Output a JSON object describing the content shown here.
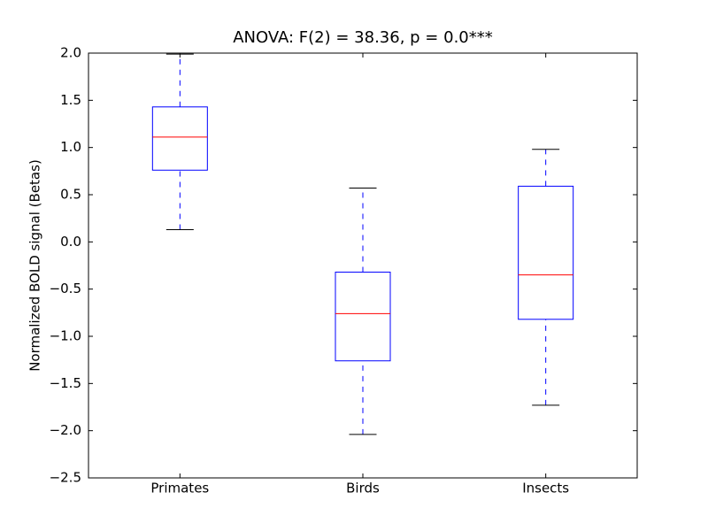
{
  "chart_data": {
    "type": "box",
    "title": "ANOVA: F(2) = 38.36, p = 0.0***",
    "y_label": "Normalized BOLD signal (Betas)",
    "categories": [
      "Primates",
      "Birds",
      "Insects"
    ],
    "boxes": [
      {
        "low": 0.13,
        "q1": 0.76,
        "median": 1.11,
        "q3": 1.43,
        "high": 1.99
      },
      {
        "low": -2.04,
        "q1": -1.26,
        "median": -0.76,
        "q3": -0.32,
        "high": 0.57
      },
      {
        "low": -1.73,
        "q1": -0.82,
        "median": -0.35,
        "q3": 0.59,
        "high": 0.98
      }
    ],
    "box_color": "#0000ff",
    "median_color": "#ff0000",
    "cap_color": "#000000",
    "ylim": [
      -2.5,
      2.0
    ],
    "yticks": [
      {
        "value": -2.5,
        "label": "−2.5"
      },
      {
        "value": -2.0,
        "label": "−2.0"
      },
      {
        "value": -1.5,
        "label": "−1.5"
      },
      {
        "value": -1.0,
        "label": "−1.0"
      },
      {
        "value": -0.5,
        "label": "−0.5"
      },
      {
        "value": 0.0,
        "label": "0.0"
      },
      {
        "value": 0.5,
        "label": "0.5"
      },
      {
        "value": 1.0,
        "label": "1.0"
      },
      {
        "value": 1.5,
        "label": "1.5"
      },
      {
        "value": 2.0,
        "label": "2.0"
      }
    ],
    "grid": false
  }
}
